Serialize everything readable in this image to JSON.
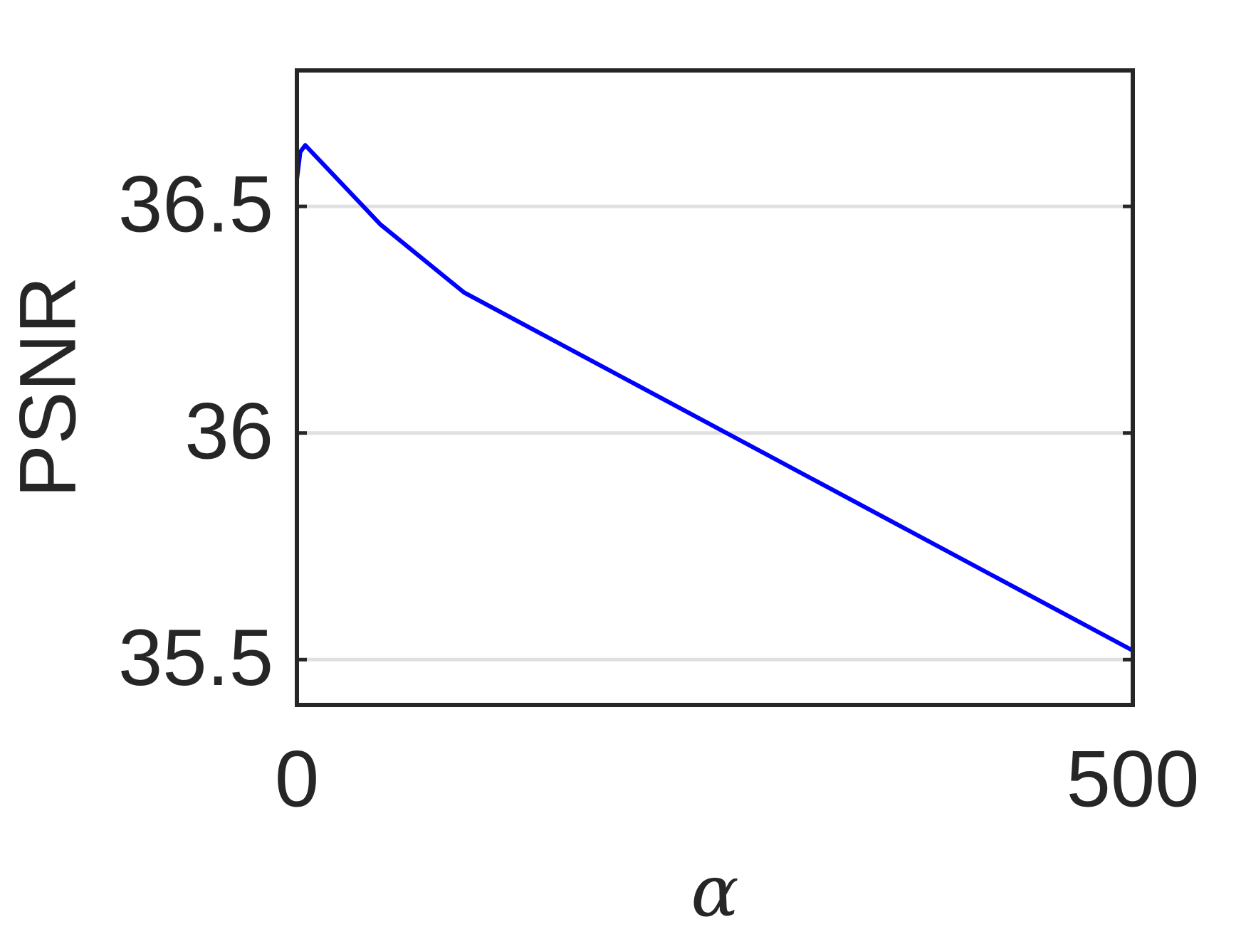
{
  "chart_data": {
    "type": "line",
    "x_label": "α",
    "y_label": "PSNR",
    "x": [
      0,
      2,
      5,
      50,
      100,
      500
    ],
    "series": [
      {
        "name": "PSNR",
        "color": "#0000ff",
        "values": [
          36.56,
          36.62,
          36.635,
          36.46,
          36.31,
          35.52
        ]
      }
    ],
    "xlim": [
      0,
      500
    ],
    "xticks": [
      0,
      500
    ],
    "ylim": [
      35.4,
      36.8
    ],
    "yticks": [
      35.5,
      36,
      36.5
    ],
    "grid": true
  }
}
